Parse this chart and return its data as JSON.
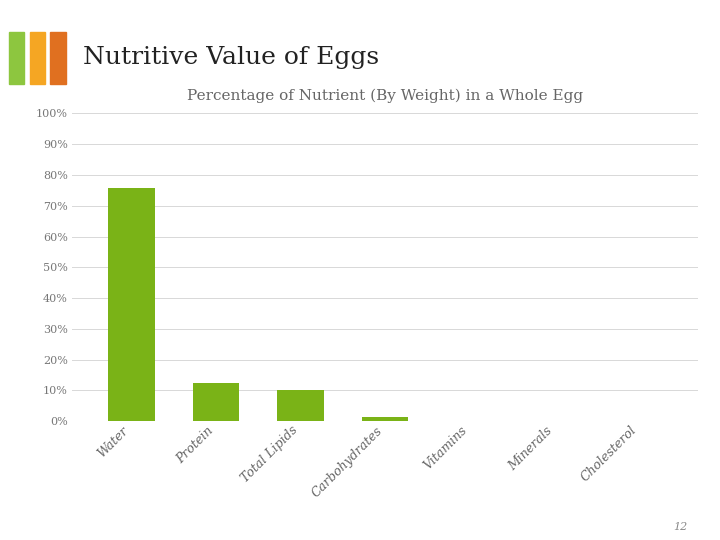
{
  "title": "Nutritive Value of Eggs",
  "subtitle": "Percentage of Nutrient (By Weight) in a Whole Egg",
  "categories": [
    "Water",
    "Protein",
    "Total Lipids",
    "Carbohydrates",
    "Vitamins",
    "Minerals",
    "Cholesterol"
  ],
  "values": [
    75.8,
    12.5,
    10.0,
    1.5,
    0.05,
    0.05,
    0.05
  ],
  "bar_color": "#7ab317",
  "ylim": [
    0,
    100
  ],
  "yticks": [
    0,
    10,
    20,
    30,
    40,
    50,
    60,
    70,
    80,
    90,
    100
  ],
  "ytick_labels": [
    "0%",
    "10%",
    "20%",
    "30%",
    "40%",
    "50%",
    "60%",
    "70%",
    "80%",
    "90%",
    "100%"
  ],
  "background_color": "#ffffff",
  "grid_color": "#d8d8d8",
  "title_color": "#222222",
  "subtitle_color": "#666666",
  "title_fontsize": 18,
  "subtitle_fontsize": 11,
  "tick_label_fontsize": 9,
  "axis_tick_fontsize": 8,
  "accent_colors": [
    "#8dc63f",
    "#f5a623",
    "#e07020"
  ],
  "page_number": "12",
  "bar_width": 0.55,
  "bottom_wave_color": "#e8e8e8",
  "bottom_wave_top_color": "#f0f0f0"
}
